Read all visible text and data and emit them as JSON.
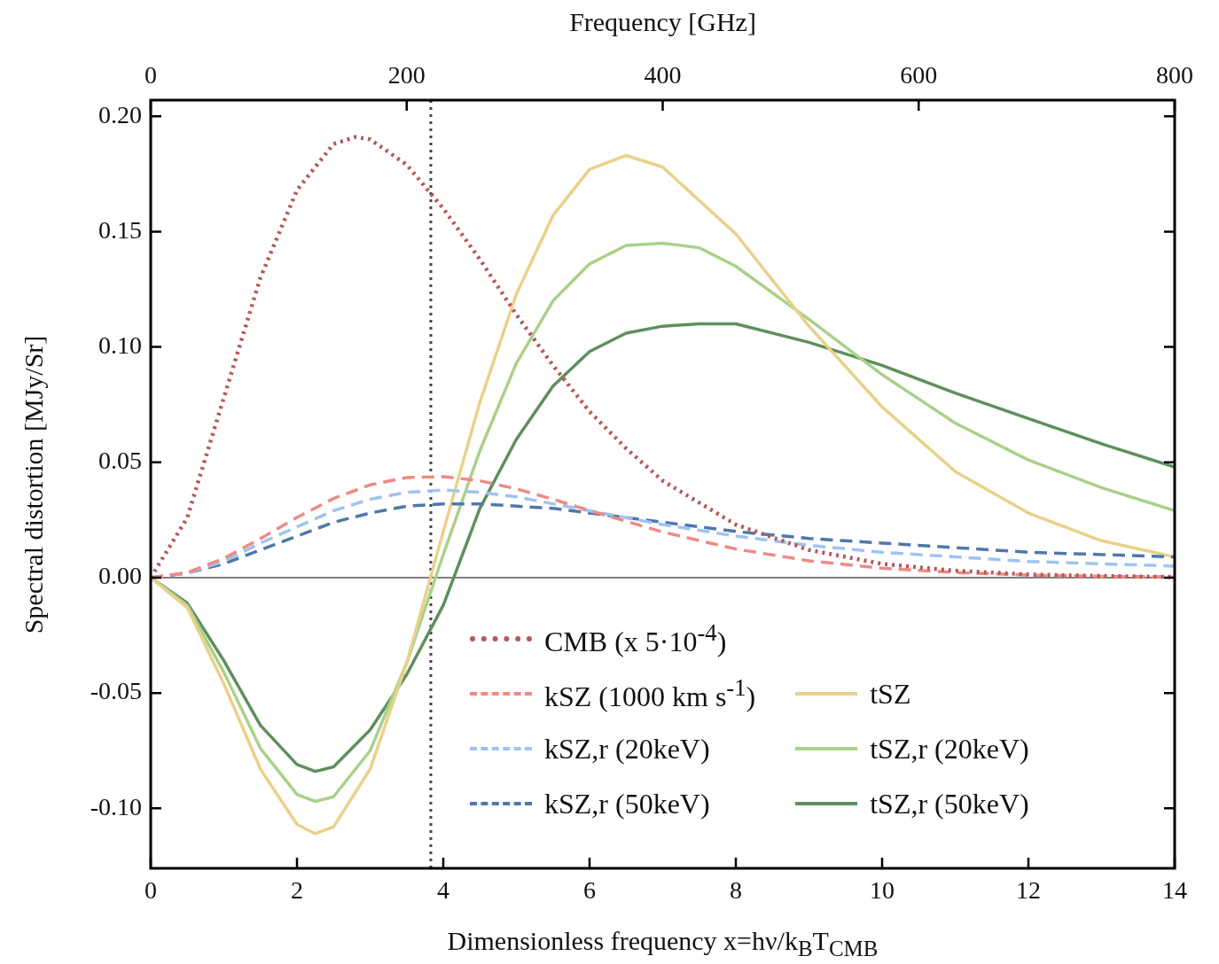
{
  "chart_data": {
    "type": "line",
    "xlabel": "Dimensionless frequency x=hν/k$_{B}$T$_{CMB}$",
    "ylabel": "Spectral distortion [MJy/Sr]",
    "x2label": "Frequency [GHz]",
    "xlim": [
      0,
      14
    ],
    "xticks": [
      0,
      2,
      4,
      6,
      8,
      10,
      12,
      14
    ],
    "x2lim": [
      0,
      800
    ],
    "x2ticks": [
      0,
      200,
      400,
      600,
      800
    ],
    "ylim": [
      -0.126,
      0.207
    ],
    "yticks": [
      {
        "value": -0.1,
        "label": "-0.10"
      },
      {
        "value": -0.05,
        "label": "-0.05"
      },
      {
        "value": 0,
        "label": "0.00"
      },
      {
        "value": 0.05,
        "label": "0.05"
      },
      {
        "value": 0.1,
        "label": "0.10"
      },
      {
        "value": 0.15,
        "label": "0.15"
      },
      {
        "value": 0.2,
        "label": "0.20"
      }
    ],
    "grid": false,
    "legend": "bottom right",
    "ref_lines": [
      {
        "axis": "y",
        "value": 0,
        "color": "#000000",
        "line_style": "solid"
      },
      {
        "axis": "x",
        "value": 3.83,
        "color": "#444444",
        "line_style": "dotted"
      }
    ],
    "series": [
      {
        "name": "CMB (x 5·10$^{-4}$)",
        "color": "#b5585a",
        "line_style": "dotted",
        "x": [
          0,
          0.5,
          1,
          1.5,
          2,
          2.5,
          2.8,
          3,
          3.5,
          4,
          4.5,
          5,
          5.5,
          6,
          6.5,
          7,
          8,
          9,
          10,
          11,
          12,
          13,
          14
        ],
        "values": [
          0,
          0.026,
          0.078,
          0.13,
          0.168,
          0.188,
          0.191,
          0.19,
          0.179,
          0.16,
          0.138,
          0.114,
          0.092,
          0.072,
          0.056,
          0.042,
          0.023,
          0.012,
          0.006,
          0.003,
          0.0014,
          0.0007,
          0.0003
        ]
      },
      {
        "name": "kSZ   (1000 km s$^{-1}$)",
        "color": "#ee8a84",
        "line_style": "dashed",
        "x": [
          0,
          0.5,
          1,
          1.5,
          2,
          2.5,
          3,
          3.5,
          4,
          4.5,
          5,
          5.5,
          6,
          7,
          8,
          9,
          10,
          11,
          12,
          13,
          14
        ],
        "values": [
          0,
          0.0022,
          0.0083,
          0.0169,
          0.0261,
          0.0343,
          0.0402,
          0.0434,
          0.0438,
          0.042,
          0.0385,
          0.034,
          0.0291,
          0.0198,
          0.0124,
          0.0073,
          0.0041,
          0.0022,
          0.0011,
          0.0006,
          0.0003
        ]
      },
      {
        "name": "kSZ,r (20keV)",
        "color": "#9ec3ef",
        "line_style": "dashed",
        "x": [
          0,
          0.5,
          1,
          1.5,
          2,
          2.5,
          3,
          3.5,
          4,
          4.5,
          5,
          5.5,
          6,
          7,
          8,
          9,
          10,
          11,
          12,
          13,
          14
        ],
        "values": [
          0,
          0.002,
          0.007,
          0.015,
          0.022,
          0.029,
          0.034,
          0.037,
          0.038,
          0.037,
          0.035,
          0.032,
          0.029,
          0.023,
          0.018,
          0.014,
          0.011,
          0.009,
          0.007,
          0.006,
          0.005
        ]
      },
      {
        "name": "kSZ,r (50keV)",
        "color": "#4f78ab",
        "line_style": "dashed",
        "x": [
          0,
          0.5,
          1,
          1.5,
          2,
          2.5,
          3,
          3.5,
          4,
          4.5,
          5,
          5.5,
          6,
          7,
          8,
          9,
          10,
          11,
          12,
          13,
          14
        ],
        "values": [
          0,
          0.002,
          0.006,
          0.012,
          0.018,
          0.024,
          0.028,
          0.031,
          0.032,
          0.032,
          0.031,
          0.03,
          0.028,
          0.024,
          0.02,
          0.017,
          0.015,
          0.013,
          0.011,
          0.01,
          0.009
        ]
      },
      {
        "name": "tSZ",
        "color": "#ead08a",
        "line_style": "solid",
        "x": [
          0,
          0.5,
          1,
          1.5,
          2,
          2.25,
          2.5,
          3,
          3.5,
          4,
          4.5,
          5,
          5.5,
          6,
          6.5,
          7,
          8,
          9,
          10,
          11,
          12,
          13,
          14
        ],
        "values": [
          0,
          -0.013,
          -0.046,
          -0.083,
          -0.107,
          -0.111,
          -0.108,
          -0.083,
          -0.037,
          0.02,
          0.076,
          0.123,
          0.157,
          0.177,
          0.183,
          0.178,
          0.149,
          0.109,
          0.074,
          0.046,
          0.028,
          0.016,
          0.009
        ]
      },
      {
        "name": "tSZ,r (20keV)",
        "color": "#a9d18a",
        "line_style": "solid",
        "x": [
          0,
          0.5,
          1,
          1.5,
          2,
          2.25,
          2.5,
          3,
          3.5,
          4,
          4.5,
          5,
          5.5,
          6,
          6.5,
          7,
          7.5,
          8,
          9,
          10,
          11,
          12,
          13,
          14
        ],
        "values": [
          0,
          -0.012,
          -0.041,
          -0.074,
          -0.094,
          -0.097,
          -0.095,
          -0.075,
          -0.037,
          0.01,
          0.055,
          0.093,
          0.12,
          0.136,
          0.144,
          0.145,
          0.143,
          0.135,
          0.112,
          0.088,
          0.067,
          0.051,
          0.039,
          0.029
        ]
      },
      {
        "name": "tSZ,r (50keV)",
        "color": "#5e8f5e",
        "line_style": "solid",
        "x": [
          0,
          0.5,
          1,
          1.5,
          2,
          2.25,
          2.5,
          3,
          3.5,
          4,
          4.5,
          5,
          5.5,
          6,
          6.5,
          7,
          7.5,
          8,
          9,
          10,
          11,
          12,
          13,
          14
        ],
        "values": [
          0,
          -0.011,
          -0.036,
          -0.064,
          -0.081,
          -0.084,
          -0.082,
          -0.066,
          -0.042,
          -0.012,
          0.03,
          0.06,
          0.083,
          0.098,
          0.106,
          0.109,
          0.11,
          0.11,
          0.102,
          0.092,
          0.08,
          0.069,
          0.058,
          0.048
        ]
      }
    ]
  }
}
